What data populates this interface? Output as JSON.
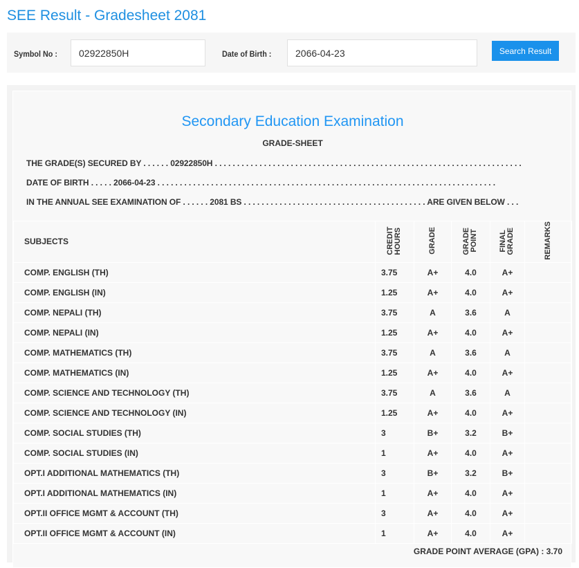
{
  "page_title": "SEE Result - Gradesheet 2081",
  "search": {
    "symbol_label": "Symbol No :",
    "symbol_value": "02922850H",
    "dob_label": "Date of Birth :",
    "dob_value": "2066-04-23",
    "button": "Search Result"
  },
  "sheet": {
    "heading": "Secondary Education Examination",
    "subheading": "GRADE-SHEET",
    "line1": "THE GRADE(S) SECURED BY . . . . . . 02922850H . . . . . . . . . . . . . . . . . . . . . . . . . . . . . . . . . . . . . . . . . . . . . . . . . . . . . . . . . . . . . . . . . . . . .",
    "line2": "DATE OF BIRTH . . . . . 2066-04-23 . . . . . . . . . . . . . . . . . . . . . . . . . . . . . . . . . . . . . . . . . . . . . . . . . . . . . . . . . . . . . . . . . . . . . . . . . . . .",
    "line3": "IN THE ANNUAL SEE EXAMINATION OF . . . . . . 2081 BS . . . . . . . . . . . . . . . . . . . . . . . . . . . . . . . . . . . . . . . . . ARE GIVEN BELOW . . .",
    "columns": {
      "subjects": "SUBJECTS",
      "credit": "CREDIT HOURS",
      "grade": "GRADE",
      "gp": "GRADE POINT",
      "final": "FINAL GRADE",
      "remarks": "REMARKS"
    },
    "rows": [
      {
        "subject": "COMP. ENGLISH (TH)",
        "credit": "3.75",
        "grade": "A+",
        "gp": "4.0",
        "final": "A+",
        "remarks": ""
      },
      {
        "subject": "COMP. ENGLISH (IN)",
        "credit": "1.25",
        "grade": "A+",
        "gp": "4.0",
        "final": "A+",
        "remarks": ""
      },
      {
        "subject": "COMP. NEPALI (TH)",
        "credit": "3.75",
        "grade": "A",
        "gp": "3.6",
        "final": "A",
        "remarks": ""
      },
      {
        "subject": "COMP. NEPALI (IN)",
        "credit": "1.25",
        "grade": "A+",
        "gp": "4.0",
        "final": "A+",
        "remarks": ""
      },
      {
        "subject": "COMP. MATHEMATICS (TH)",
        "credit": "3.75",
        "grade": "A",
        "gp": "3.6",
        "final": "A",
        "remarks": ""
      },
      {
        "subject": "COMP. MATHEMATICS (IN)",
        "credit": "1.25",
        "grade": "A+",
        "gp": "4.0",
        "final": "A+",
        "remarks": ""
      },
      {
        "subject": "COMP. SCIENCE AND TECHNOLOGY (TH)",
        "credit": "3.75",
        "grade": "A",
        "gp": "3.6",
        "final": "A",
        "remarks": ""
      },
      {
        "subject": "COMP. SCIENCE AND TECHNOLOGY (IN)",
        "credit": "1.25",
        "grade": "A+",
        "gp": "4.0",
        "final": "A+",
        "remarks": ""
      },
      {
        "subject": "COMP. SOCIAL STUDIES (TH)",
        "credit": "3",
        "grade": "B+",
        "gp": "3.2",
        "final": "B+",
        "remarks": ""
      },
      {
        "subject": "COMP. SOCIAL STUDIES (IN)",
        "credit": "1",
        "grade": "A+",
        "gp": "4.0",
        "final": "A+",
        "remarks": ""
      },
      {
        "subject": "OPT.I ADDITIONAL MATHEMATICS (TH)",
        "credit": "3",
        "grade": "B+",
        "gp": "3.2",
        "final": "B+",
        "remarks": ""
      },
      {
        "subject": "OPT.I ADDITIONAL MATHEMATICS (IN)",
        "credit": "1",
        "grade": "A+",
        "gp": "4.0",
        "final": "A+",
        "remarks": ""
      },
      {
        "subject": "OPT.II OFFICE MGMT & ACCOUNT (TH)",
        "credit": "3",
        "grade": "A+",
        "gp": "4.0",
        "final": "A+",
        "remarks": ""
      },
      {
        "subject": "OPT.II OFFICE MGMT & ACCOUNT (IN)",
        "credit": "1",
        "grade": "A+",
        "gp": "4.0",
        "final": "A+",
        "remarks": ""
      }
    ],
    "gpa": "GRADE POINT AVERAGE (GPA) : 3.70"
  },
  "colors": {
    "accent": "#1e8fe1",
    "button": "#1a91eb"
  }
}
